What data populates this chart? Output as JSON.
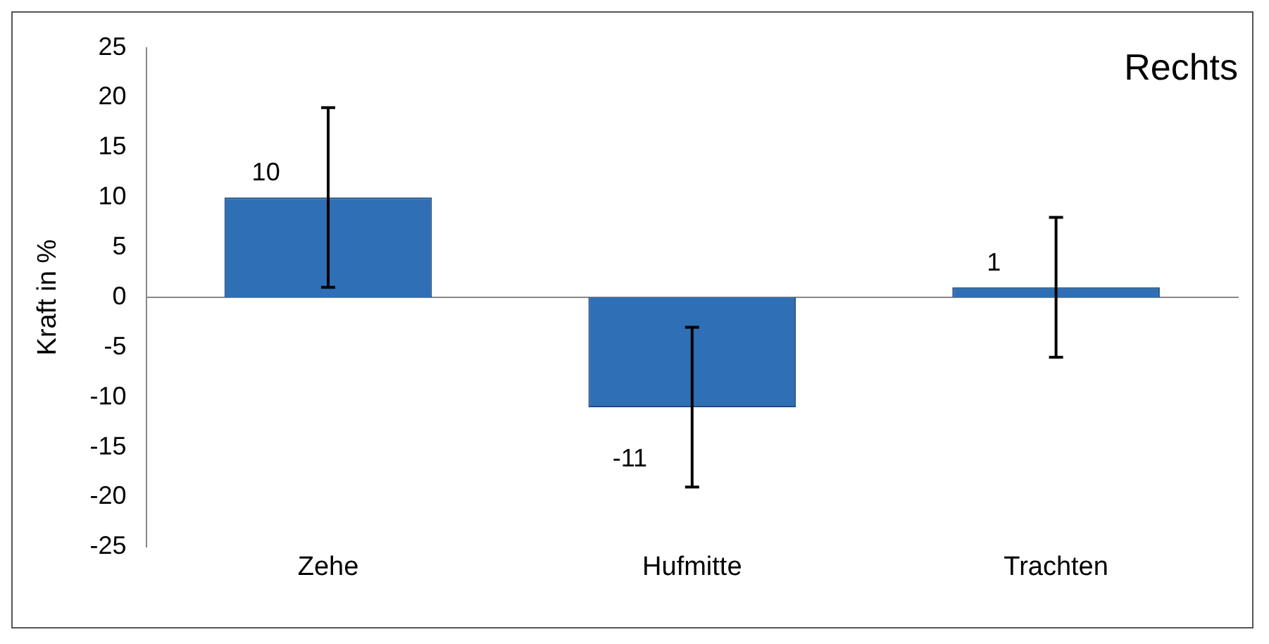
{
  "chart_data": {
    "type": "bar",
    "title": "Rechts",
    "ylabel": "Kraft in %",
    "categories": [
      "Zehe",
      "Hufmitte",
      "Trachten"
    ],
    "values": [
      10,
      -11,
      1
    ],
    "errors": [
      9,
      8,
      7
    ],
    "color": "#2f6fb5",
    "ylim": [
      -25,
      25
    ],
    "yticks": [
      -25,
      -20,
      -15,
      -10,
      -5,
      0,
      5,
      10,
      15,
      20,
      25
    ],
    "data_labels": true,
    "legend": false
  }
}
